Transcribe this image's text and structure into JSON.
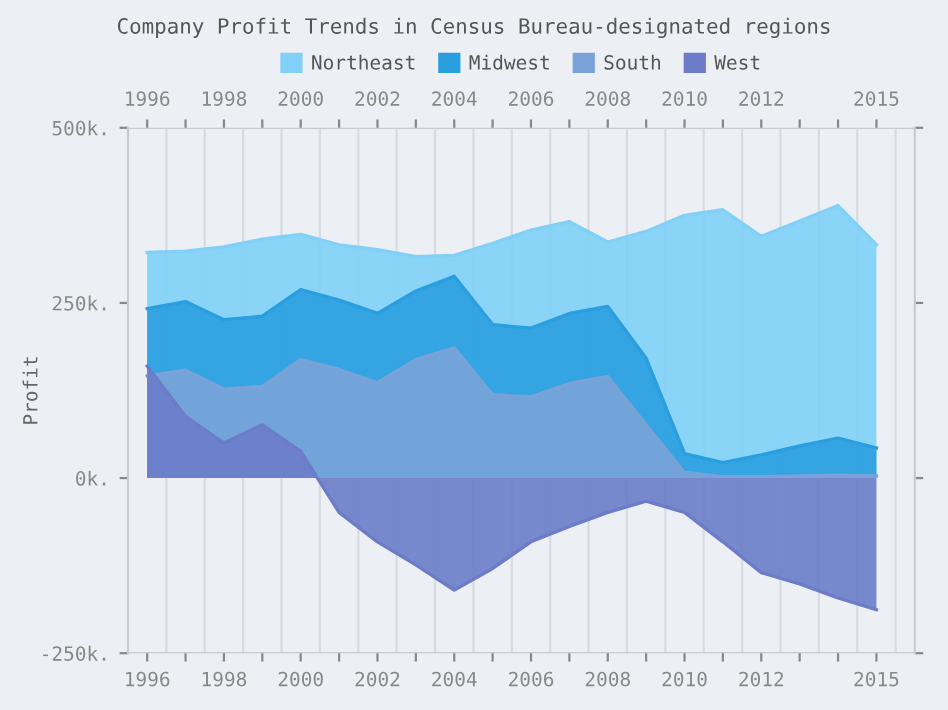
{
  "chart_data": {
    "type": "area",
    "title": "Company Profit Trends in Census Bureau-designated regions",
    "ylabel": "Profit",
    "categories": [
      "1996",
      null,
      "1998",
      null,
      "2000",
      null,
      "2002",
      null,
      "2004",
      null,
      "2006",
      null,
      "2008",
      null,
      "2010",
      null,
      "2012",
      null,
      null,
      "2015"
    ],
    "series": [
      {
        "name": "Northeast",
        "color": "#80d0f8",
        "values": [
          322,
          324,
          330,
          341,
          348,
          333,
          326,
          316,
          318,
          335,
          354,
          366,
          337,
          352,
          375,
          383,
          345,
          367,
          389,
          333
        ]
      },
      {
        "name": "Midwest",
        "color": "#2a9fdf",
        "values": [
          242,
          252,
          226,
          231,
          269,
          254,
          235,
          267,
          288,
          219,
          214,
          235,
          245,
          171,
          35,
          22,
          33,
          46,
          57,
          43
        ]
      },
      {
        "name": "South",
        "color": "#79a3d8",
        "values": [
          146,
          154,
          127,
          131,
          169,
          155,
          136,
          169,
          186,
          119,
          116,
          135,
          145,
          76,
          8,
          2,
          2,
          3,
          4,
          3
        ]
      },
      {
        "name": "West",
        "color": "#6c7cc9",
        "values": [
          160,
          88,
          50,
          76,
          38,
          -49,
          -91,
          -124,
          -160,
          -129,
          -91,
          -69,
          -49,
          -33,
          -49,
          -91,
          -135,
          -151,
          -171,
          -188
        ]
      }
    ],
    "ylim": [
      -250,
      500
    ],
    "yticks": [
      {
        "value": -250,
        "label": "-250k."
      },
      {
        "value": 0,
        "label": "0k."
      },
      {
        "value": 250,
        "label": "250k."
      },
      {
        "value": 500,
        "label": "500k."
      }
    ],
    "grid": "x",
    "legend": "top"
  }
}
